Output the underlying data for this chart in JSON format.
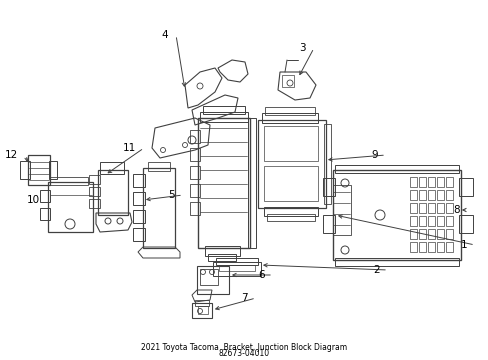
{
  "bg_color": "#ffffff",
  "line_color": "#404040",
  "fig_width": 4.89,
  "fig_height": 3.6,
  "dpi": 100,
  "title1": "2021 Toyota Tacoma  Bracket, Junction Block Diagram",
  "title2": "82673-04010"
}
